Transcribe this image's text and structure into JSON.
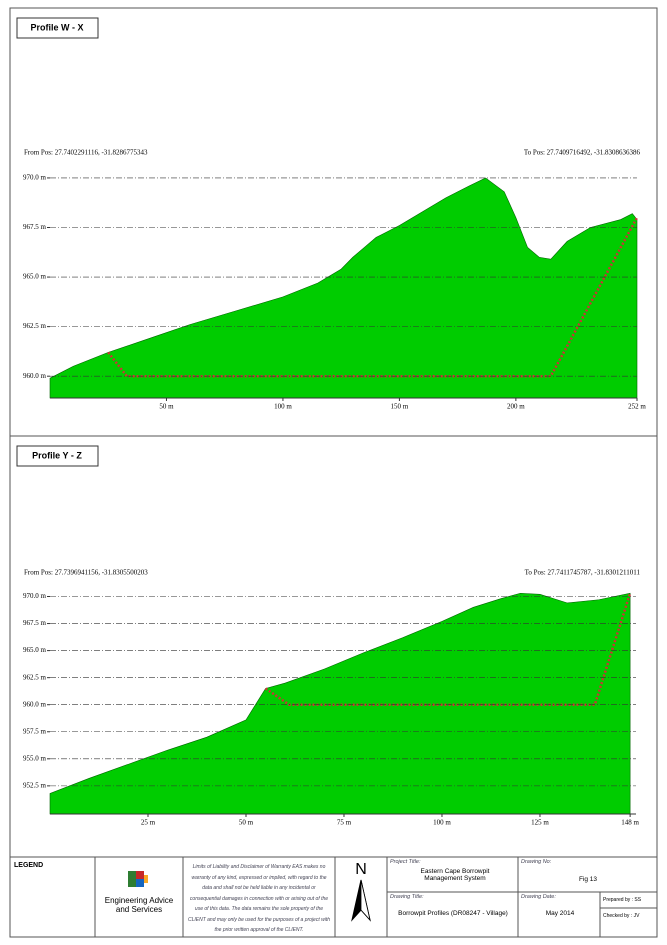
{
  "chart_data": [
    {
      "type": "area",
      "title": "Profile W - X",
      "from_label": "From Pos: 27.7402291116, -31.8286775343",
      "to_label": "To Pos: 27.7409716492, -31.8308636386",
      "xlim": [
        0,
        252
      ],
      "ylim": [
        958.9,
        970.4
      ],
      "xticks": [
        {
          "value": 50,
          "label": "50 m"
        },
        {
          "value": 100,
          "label": "100 m"
        },
        {
          "value": 150,
          "label": "150 m"
        },
        {
          "value": 200,
          "label": "200 m"
        },
        {
          "value": 252,
          "label": "252 m"
        }
      ],
      "yticks": [
        {
          "value": 960,
          "label": "960.0 m"
        },
        {
          "value": 962.5,
          "label": "962.5 m"
        },
        {
          "value": 965,
          "label": "965.0 m"
        },
        {
          "value": 967.5,
          "label": "967.5 m"
        },
        {
          "value": 970,
          "label": "970.0 m"
        }
      ],
      "grid": true,
      "series": [
        {
          "color": "#00cc00",
          "style": "area",
          "x": [
            0,
            10,
            25,
            45,
            60,
            80,
            100,
            115,
            125,
            130,
            135,
            140,
            150,
            160,
            170,
            180,
            187,
            195,
            200,
            205,
            210,
            215,
            222,
            232,
            245,
            250,
            252
          ],
          "values": [
            959.9,
            960.5,
            961.2,
            962,
            962.6,
            963.3,
            964,
            964.7,
            965.4,
            966,
            966.5,
            967,
            967.6,
            968.3,
            969,
            969.6,
            970,
            969.3,
            968,
            966.5,
            966,
            965.9,
            966.8,
            967.5,
            967.9,
            968.2,
            967.9
          ]
        },
        {
          "color": "#cc3333",
          "style": "dotted",
          "x": [
            25,
            33,
            215,
            252
          ],
          "values": [
            961.2,
            960,
            960,
            968
          ]
        }
      ]
    },
    {
      "type": "area",
      "title": "Profile Y - Z",
      "from_label": "From Pos: 27.7396941156, -31.8305500203",
      "to_label": "To Pos: 27.7411745787, -31.8301211011",
      "xlim": [
        0,
        149.5
      ],
      "ylim": [
        949.9,
        970.6
      ],
      "xticks": [
        {
          "value": 25,
          "label": "25 m"
        },
        {
          "value": 50,
          "label": "50 m"
        },
        {
          "value": 75,
          "label": "75 m"
        },
        {
          "value": 100,
          "label": "100 m"
        },
        {
          "value": 125,
          "label": "125 m"
        },
        {
          "value": 148,
          "label": "148 m"
        }
      ],
      "yticks": [
        {
          "value": 952.5,
          "label": "952.5 m"
        },
        {
          "value": 955,
          "label": "955.0 m"
        },
        {
          "value": 957.5,
          "label": "957.5 m"
        },
        {
          "value": 960,
          "label": "960.0 m"
        },
        {
          "value": 962.5,
          "label": "962.5 m"
        },
        {
          "value": 965,
          "label": "965.0 m"
        },
        {
          "value": 967.5,
          "label": "967.5 m"
        },
        {
          "value": 970,
          "label": "970.0 m"
        }
      ],
      "grid": true,
      "series": [
        {
          "color": "#00cc00",
          "style": "area",
          "x": [
            0,
            10,
            20,
            30,
            40,
            50,
            55,
            60,
            70,
            80,
            90,
            100,
            108,
            115,
            120,
            125,
            132,
            140,
            148
          ],
          "values": [
            951.8,
            953.2,
            954.5,
            955.8,
            957,
            958.6,
            961.5,
            962,
            963.3,
            964.8,
            966.2,
            967.7,
            969,
            969.8,
            970.3,
            970.2,
            969.4,
            969.7,
            970.3
          ]
        },
        {
          "color": "#cc3333",
          "style": "dotted",
          "x": [
            55,
            61,
            139,
            148
          ],
          "values": [
            961.5,
            960,
            960,
            970.3
          ]
        }
      ]
    }
  ],
  "title_block": {
    "legend": "LEGEND",
    "company": "Engineering Advice and Services",
    "disclaimer": "Limits of Liability and Disclaimer of Warranty EAS makes no warranty of any kind, expressed or implied, with regard to the data and shall not be held liable in any incidental or consequential damages in connection with or arising out of the use of this data. The data remains the sole property of the CLIENT and may only be used for the purposes of a project with the prior written approval of the CLIENT.",
    "north": "N",
    "project_title_label": "Project Title:",
    "project_title": "Eastern Cape Borrowpit Management System",
    "drawing_title_label": "Drawing Title:",
    "drawing_title": "Borrowpit Profiles (DR08247 - Village)",
    "drawing_no_label": "Drawing No:",
    "drawing_no": "Fig 13",
    "drawing_date_label": "Drawing Date:",
    "drawing_date": "May 2014",
    "prepared_by": "Prepared by : SS",
    "checked_by": "Checked by : JV"
  }
}
